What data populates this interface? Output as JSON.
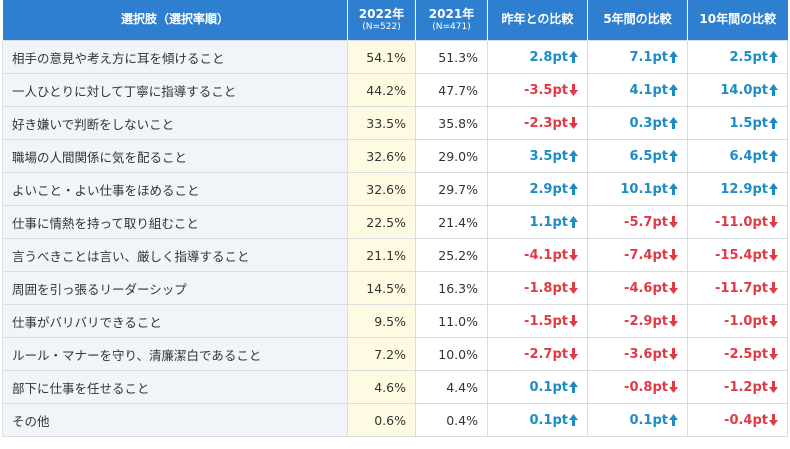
{
  "header": {
    "columns": [
      {
        "title": "選択肢（選択率順）"
      },
      {
        "title": "2022年",
        "note": "(N=522)"
      },
      {
        "title": "2021年",
        "note": "(N=471)"
      },
      {
        "title": "昨年との比較"
      },
      {
        "title": "5年間の比較"
      },
      {
        "title": "10年間の比較"
      }
    ]
  },
  "table": {
    "rows": [
      [
        "相手の意見や考え方に耳を傾けること",
        "54.1%",
        "51.3%",
        "2.8pt",
        "7.1pt",
        "2.5pt"
      ],
      [
        "一人ひとりに対して丁寧に指導すること",
        "44.2%",
        "47.7%",
        "-3.5pt",
        "4.1pt",
        "14.0pt"
      ],
      [
        "好き嫌いで判断をしないこと",
        "33.5%",
        "35.8%",
        "-2.3pt",
        "0.3pt",
        "1.5pt"
      ],
      [
        "職場の人間関係に気を配ること",
        "32.6%",
        "29.0%",
        "3.5pt",
        "6.5pt",
        "6.4pt"
      ],
      [
        "よいこと・よい仕事をほめること",
        "32.6%",
        "29.7%",
        "2.9pt",
        "10.1pt",
        "12.9pt"
      ],
      [
        "仕事に情熱を持って取り組むこと",
        "22.5%",
        "21.4%",
        "1.1pt",
        "-5.7pt",
        "-11.0pt"
      ],
      [
        "言うべきことは言い、厳しく指導すること",
        "21.1%",
        "25.2%",
        "-4.1pt",
        "-7.4pt",
        "-15.4pt"
      ],
      [
        "周囲を引っ張るリーダーシップ",
        "14.5%",
        "16.3%",
        "-1.8pt",
        "-4.6pt",
        "-11.7pt"
      ],
      [
        "仕事がバリバリできること",
        "9.5%",
        "11.0%",
        "-1.5pt",
        "-2.9pt",
        "-1.0pt"
      ],
      [
        "ルール・マナーを守り、清廉潔白であること",
        "7.2%",
        "10.0%",
        "-2.7pt",
        "-3.6pt",
        "-2.5pt"
      ],
      [
        "部下に仕事を任せること",
        "4.6%",
        "4.4%",
        "0.1pt",
        "-0.8pt",
        "-1.2pt"
      ],
      [
        "その他",
        "0.6%",
        "0.4%",
        "0.1pt",
        "0.1pt",
        "-0.4pt"
      ]
    ]
  }
}
